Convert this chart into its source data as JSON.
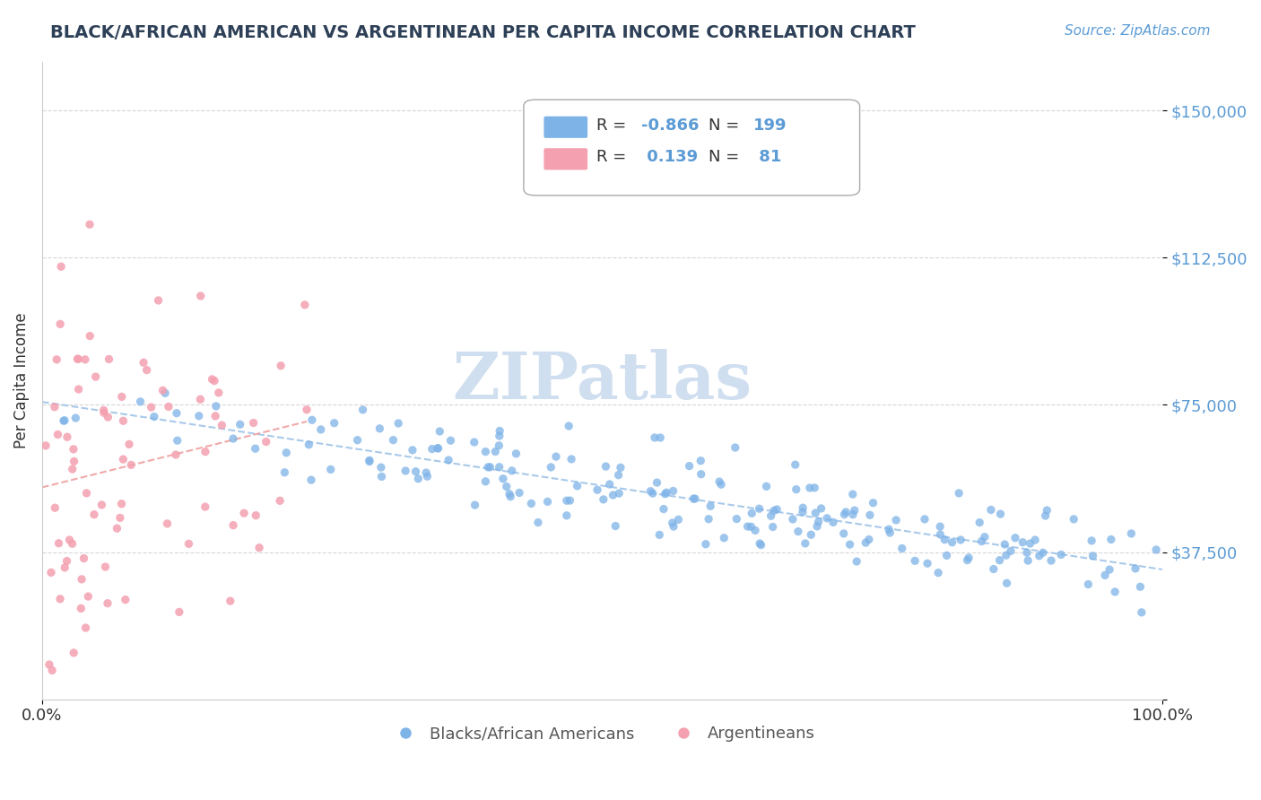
{
  "title": "BLACK/AFRICAN AMERICAN VS ARGENTINEAN PER CAPITA INCOME CORRELATION CHART",
  "source_text": "Source: ZipAtlas.com",
  "xlabel": "",
  "ylabel": "Per Capita Income",
  "xlim": [
    0.0,
    1.0
  ],
  "ylim": [
    0,
    162500
  ],
  "yticks": [
    0,
    37500,
    75000,
    112500,
    150000
  ],
  "ytick_labels": [
    "",
    "$37,500",
    "$75,000",
    "$112,500",
    "$150,000"
  ],
  "xtick_labels": [
    "0.0%",
    "100.0%"
  ],
  "blue_R": -0.866,
  "blue_N": 199,
  "pink_R": 0.139,
  "pink_N": 81,
  "blue_color": "#7EB3E8",
  "pink_color": "#F4A0B0",
  "blue_line_color": "#5B9BD5",
  "pink_line_color": "#E87070",
  "trend_line_color_blue": "#A0C4E8",
  "trend_line_color_pink": "#F0A0A0",
  "background_color": "#FFFFFF",
  "title_color": "#2E4057",
  "axis_label_color": "#5B9BD5",
  "legend_R_color": "#333333",
  "legend_NRval_color": "#5B9BD5",
  "watermark_text": "ZIPatlas",
  "watermark_color": "#D0DFF0",
  "legend_label_blue": "Blacks/African Americans",
  "legend_label_pink": "Argentineans",
  "seed_blue": 42,
  "seed_pink": 99
}
